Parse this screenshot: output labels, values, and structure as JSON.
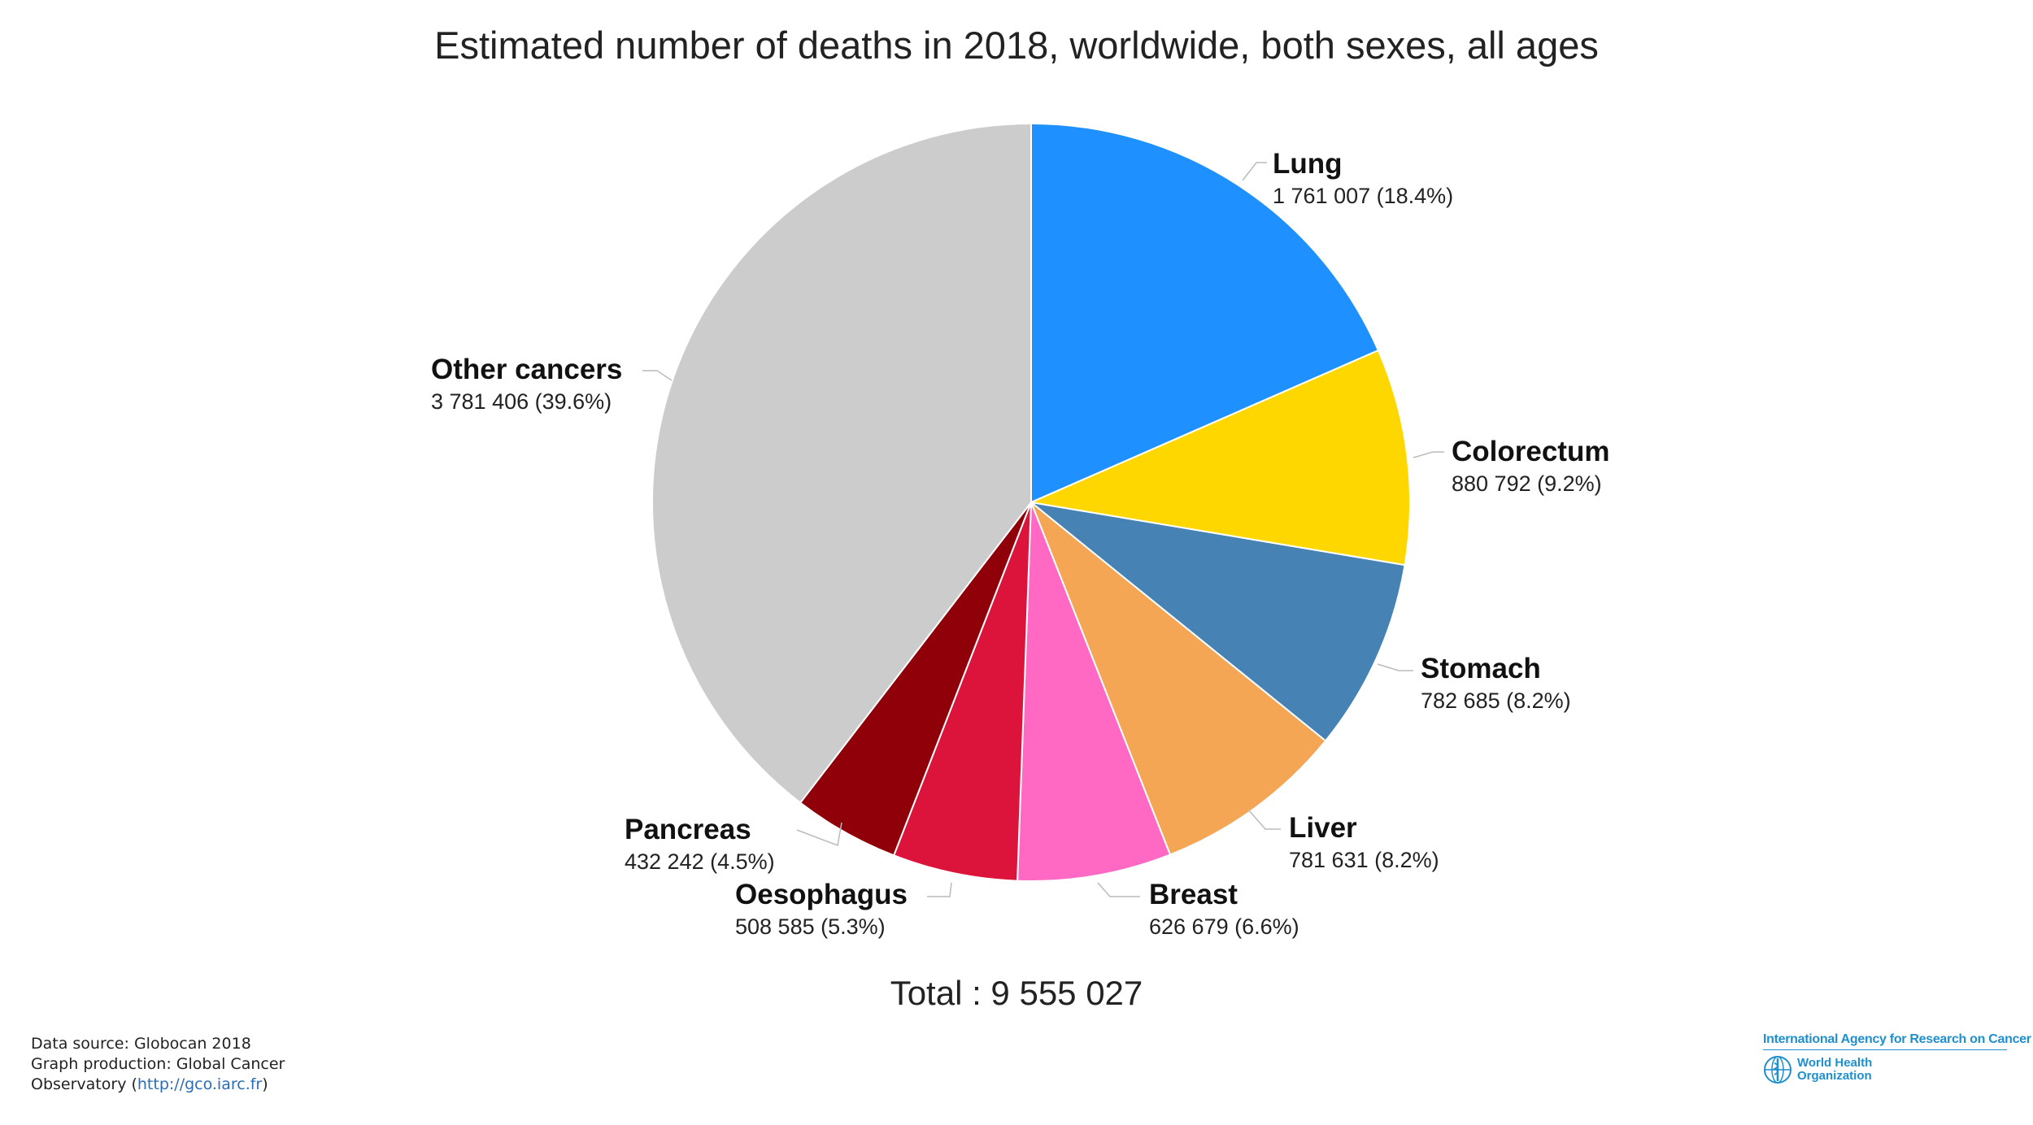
{
  "chart_data": {
    "type": "pie",
    "title": "Estimated number of deaths in 2018, worldwide, both sexes, all ages",
    "total_label": "Total : 9 555 027",
    "slices": [
      {
        "name": "Lung",
        "value_label": "1 761 007 (18.4%)",
        "value": 1761007,
        "percent": 18.4,
        "color": "#1e90ff"
      },
      {
        "name": "Colorectum",
        "value_label": "880 792 (9.2%)",
        "value": 880792,
        "percent": 9.2,
        "color": "#ffd700"
      },
      {
        "name": "Stomach",
        "value_label": "782 685 (8.2%)",
        "value": 782685,
        "percent": 8.2,
        "color": "#4682b4"
      },
      {
        "name": "Liver",
        "value_label": "781 631 (8.2%)",
        "value": 781631,
        "percent": 8.2,
        "color": "#f4a655"
      },
      {
        "name": "Breast",
        "value_label": "626 679 (6.6%)",
        "value": 626679,
        "percent": 6.6,
        "color": "#ff69c4"
      },
      {
        "name": "Oesophagus",
        "value_label": "508 585 (5.3%)",
        "value": 508585,
        "percent": 5.3,
        "color": "#dc143c"
      },
      {
        "name": "Pancreas",
        "value_label": "432 242 (4.5%)",
        "value": 432242,
        "percent": 4.5,
        "color": "#900009"
      },
      {
        "name": "Other cancers",
        "value_label": "3 781 406 (39.6%)",
        "value": 3781406,
        "percent": 39.6,
        "color": "#cccccc"
      }
    ]
  },
  "footer": {
    "line1": "Data source: Globocan 2018",
    "line2": "Graph production: Global Cancer",
    "line3_prefix": "Observatory (",
    "link": "http://gco.iarc.fr",
    "line3_suffix": ")"
  },
  "logos": {
    "iarc": "International Agency for Research on Cancer",
    "who_line1": "World Health",
    "who_line2": "Organization",
    "who_icon": "who-emblem-icon"
  }
}
